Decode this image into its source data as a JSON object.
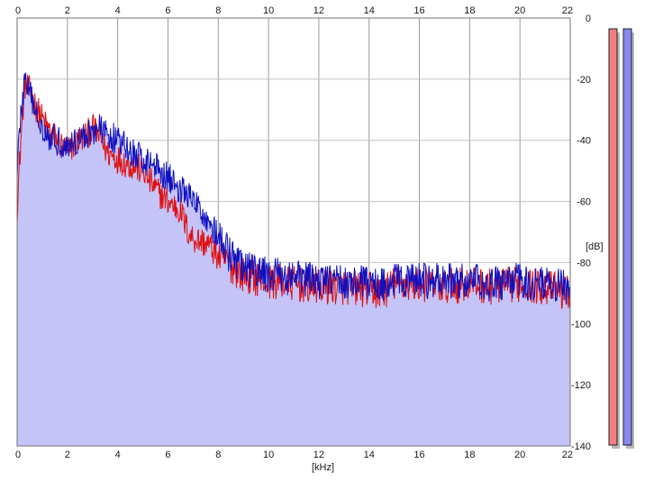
{
  "chart_data": {
    "type": "line",
    "title": "",
    "xlabel": "[kHz]",
    "ylabel": "[dB]",
    "xlim": [
      0,
      22
    ],
    "ylim": [
      -140,
      0
    ],
    "x_ticks": [
      0,
      2,
      4,
      6,
      8,
      10,
      12,
      14,
      16,
      18,
      20,
      22
    ],
    "y_ticks": [
      0,
      -20,
      -40,
      -60,
      -80,
      -100,
      -120,
      -140
    ],
    "x_tick_labels": [
      "0",
      "2",
      "4",
      "6",
      "8",
      "10",
      "12",
      "14",
      "16",
      "18",
      "20",
      "22"
    ],
    "y_tick_labels": [
      "0",
      "-20",
      "-40",
      "-60",
      "-80",
      "-100",
      "-120",
      "-140"
    ],
    "grid": true,
    "colors": {
      "red_series": "#e01010",
      "blue_series": "#1010c0",
      "fill": "#c4c4f8",
      "grid": "#9a9a9a",
      "meter_red": "#f08080",
      "meter_blue": "#8888ee"
    },
    "series": [
      {
        "color": "#e01010",
        "x": [
          0.0,
          0.15,
          0.3,
          0.5,
          0.8,
          1.2,
          1.6,
          2.0,
          2.4,
          2.8,
          3.0,
          3.2,
          3.6,
          4.0,
          4.5,
          5.0,
          5.5,
          6.0,
          6.5,
          6.8,
          7.0,
          7.3,
          7.6,
          8.0,
          8.5,
          9.0,
          10.0,
          11.0,
          12.0,
          13.0,
          14.0,
          14.5,
          15.0,
          16.0,
          17.0,
          18.0,
          19.0,
          20.0,
          21.0,
          22.0
        ],
        "values": [
          -62,
          -40,
          -22,
          -24,
          -30,
          -36,
          -40,
          -44,
          -40,
          -38,
          -36,
          -38,
          -44,
          -46,
          -48,
          -50,
          -56,
          -60,
          -63,
          -70,
          -72,
          -73,
          -74,
          -78,
          -81,
          -84,
          -86,
          -87,
          -88,
          -88,
          -89,
          -90,
          -87,
          -87,
          -88,
          -87,
          -88,
          -87,
          -88,
          -90
        ]
      },
      {
        "color": "#1010c0",
        "x": [
          0.0,
          0.15,
          0.3,
          0.5,
          0.8,
          1.2,
          1.6,
          2.0,
          2.4,
          2.8,
          3.0,
          3.2,
          3.6,
          4.0,
          4.5,
          5.0,
          5.5,
          6.0,
          6.5,
          6.8,
          7.0,
          7.3,
          7.6,
          8.0,
          8.5,
          9.0,
          10.0,
          11.0,
          12.0,
          13.0,
          14.0,
          14.5,
          15.0,
          16.0,
          17.0,
          18.0,
          19.0,
          20.0,
          21.0,
          22.0
        ],
        "values": [
          -48,
          -32,
          -20,
          -25,
          -32,
          -38,
          -40,
          -42,
          -40,
          -38,
          -37,
          -36,
          -38,
          -40,
          -44,
          -46,
          -48,
          -52,
          -56,
          -58,
          -60,
          -63,
          -66,
          -72,
          -78,
          -82,
          -84,
          -85,
          -86,
          -86,
          -87,
          -87,
          -86,
          -86,
          -86,
          -86,
          -87,
          -86,
          -87,
          -88
        ]
      }
    ],
    "level_meters": [
      {
        "color": "#f08080",
        "level": 1.0
      },
      {
        "color": "#8888ee",
        "level": 1.0
      }
    ]
  }
}
